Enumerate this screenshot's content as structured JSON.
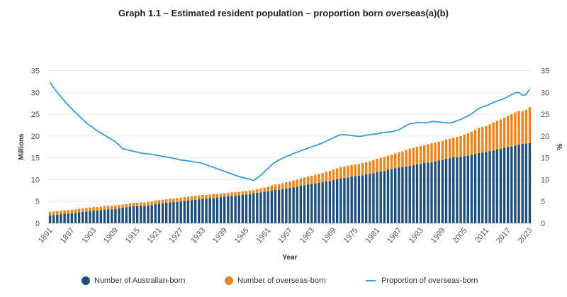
{
  "chart_data": {
    "type": "bar+line",
    "title": "Graph 1.1 – Estimated resident population – proportion born overseas(a)(b)",
    "xlabel": "Year",
    "ylabel": "Millions",
    "y2label": "%",
    "ylim": [
      0,
      35
    ],
    "y2lim": [
      0,
      35
    ],
    "yticks": [
      "0",
      "5",
      "10",
      "15",
      "20",
      "25",
      "30",
      "35"
    ],
    "y2ticks": [
      "0",
      "5",
      "10",
      "15",
      "20",
      "25",
      "30",
      "35"
    ],
    "x_start": 1891,
    "x_end": 2023,
    "xtick_labels": [
      "1891",
      "1897",
      "1903",
      "1909",
      "1915",
      "1921",
      "1927",
      "1933",
      "1939",
      "1945",
      "1951",
      "1957",
      "1963",
      "1969",
      "1975",
      "1981",
      "1987",
      "1993",
      "1999",
      "2005",
      "2011",
      "2017",
      "2023"
    ],
    "grid": true,
    "legend_position": "bottom",
    "colors": {
      "australian_born": "#1d4f79",
      "overseas_born": "#e8861c",
      "proportion": "#3b9ad8"
    },
    "series": [
      {
        "name": "Number of Australian-born",
        "type": "stacked-bar",
        "axis": "left",
        "values": [
          1.8,
          1.9,
          2.0,
          2.1,
          2.2,
          2.2,
          2.3,
          2.4,
          2.5,
          2.6,
          2.7,
          2.8,
          2.9,
          2.9,
          3.0,
          3.1,
          3.2,
          3.2,
          3.3,
          3.4,
          3.6,
          3.7,
          3.8,
          3.9,
          3.9,
          4.0,
          4.0,
          4.1,
          4.2,
          4.4,
          4.5,
          4.6,
          4.7,
          4.8,
          4.9,
          4.9,
          5.0,
          5.1,
          5.2,
          5.3,
          5.4,
          5.5,
          5.6,
          5.6,
          5.7,
          5.8,
          5.9,
          6.0,
          6.1,
          6.2,
          6.3,
          6.3,
          6.4,
          6.5,
          6.6,
          6.7,
          6.9,
          7.0,
          7.1,
          7.2,
          7.3,
          7.5,
          7.7,
          7.7,
          7.8,
          8.0,
          8.1,
          8.2,
          8.4,
          8.6,
          8.7,
          8.9,
          9.0,
          9.1,
          9.3,
          9.4,
          9.6,
          9.7,
          9.9,
          10.1,
          10.3,
          10.4,
          10.5,
          10.7,
          10.8,
          10.9,
          11.0,
          11.2,
          11.3,
          11.5,
          11.8,
          11.9,
          12.0,
          12.3,
          12.4,
          12.6,
          12.8,
          12.9,
          13.0,
          13.2,
          13.3,
          13.5,
          13.6,
          13.8,
          13.9,
          14.0,
          14.2,
          14.4,
          14.5,
          14.8,
          14.9,
          15.1,
          15.1,
          15.2,
          15.4,
          15.5,
          15.7,
          15.9,
          16.1,
          16.2,
          16.3,
          16.5,
          16.7,
          16.9,
          17.1,
          17.3,
          17.5,
          17.6,
          17.8,
          18.0,
          18.2,
          18.3,
          18.4
        ]
      },
      {
        "name": "Number of overseas-born",
        "type": "stacked-bar",
        "axis": "left",
        "values": [
          0.8,
          0.8,
          0.8,
          0.8,
          0.8,
          0.8,
          0.8,
          0.8,
          0.8,
          0.8,
          0.8,
          0.8,
          0.8,
          0.8,
          0.8,
          0.8,
          0.8,
          0.8,
          0.8,
          0.8,
          0.7,
          0.7,
          0.8,
          0.8,
          0.8,
          0.8,
          0.8,
          0.8,
          0.8,
          0.8,
          0.8,
          0.8,
          0.8,
          0.8,
          0.8,
          0.9,
          0.9,
          0.9,
          0.9,
          0.9,
          0.9,
          0.9,
          0.9,
          0.9,
          0.9,
          0.9,
          0.8,
          0.8,
          0.8,
          0.8,
          0.8,
          0.8,
          0.8,
          0.8,
          0.8,
          0.8,
          0.7,
          0.8,
          0.9,
          1.0,
          1.1,
          1.2,
          1.2,
          1.3,
          1.4,
          1.4,
          1.5,
          1.6,
          1.6,
          1.7,
          1.8,
          1.8,
          1.9,
          2.0,
          2.0,
          2.1,
          2.2,
          2.3,
          2.4,
          2.5,
          2.6,
          2.6,
          2.7,
          2.7,
          2.7,
          2.7,
          2.8,
          2.8,
          2.9,
          3.0,
          3.0,
          3.1,
          3.2,
          3.2,
          3.3,
          3.4,
          3.5,
          3.6,
          3.8,
          3.9,
          4.0,
          4.0,
          4.1,
          4.1,
          4.2,
          4.3,
          4.3,
          4.3,
          4.4,
          4.4,
          4.5,
          4.5,
          4.7,
          4.8,
          4.9,
          5.1,
          5.3,
          5.5,
          5.7,
          5.9,
          6.0,
          6.2,
          6.4,
          6.6,
          6.7,
          6.9,
          7.1,
          7.4,
          7.6,
          7.7,
          7.5,
          7.7,
          8.2
        ]
      },
      {
        "name": "Proportion of overseas-born",
        "type": "line",
        "axis": "right",
        "values": [
          32.3,
          31.1,
          30.0,
          29.0,
          28.0,
          27.1,
          26.2,
          25.4,
          24.6,
          23.8,
          23.0,
          22.4,
          21.8,
          21.2,
          20.7,
          20.2,
          19.7,
          19.2,
          18.7,
          17.9,
          17.1,
          16.9,
          16.7,
          16.5,
          16.3,
          16.1,
          16.0,
          15.9,
          15.8,
          15.6,
          15.5,
          15.3,
          15.2,
          15.0,
          14.9,
          14.7,
          14.5,
          14.4,
          14.3,
          14.2,
          14.0,
          13.9,
          13.7,
          13.4,
          13.1,
          12.8,
          12.5,
          12.2,
          11.9,
          11.6,
          11.3,
          11.0,
          10.7,
          10.5,
          10.3,
          10.1,
          9.8,
          10.4,
          11.0,
          11.8,
          12.6,
          13.4,
          14.0,
          14.5,
          14.9,
          15.3,
          15.6,
          16.0,
          16.3,
          16.6,
          16.9,
          17.2,
          17.5,
          17.8,
          18.1,
          18.4,
          18.8,
          19.2,
          19.6,
          20.0,
          20.3,
          20.3,
          20.2,
          20.1,
          20.0,
          19.9,
          20.0,
          20.2,
          20.3,
          20.4,
          20.5,
          20.7,
          20.8,
          20.9,
          21.0,
          21.2,
          21.4,
          21.9,
          22.4,
          22.8,
          22.9,
          23.1,
          23.1,
          23.0,
          23.1,
          23.3,
          23.3,
          23.2,
          23.1,
          23.0,
          23.0,
          23.2,
          23.5,
          23.8,
          24.2,
          24.6,
          25.1,
          25.7,
          26.3,
          26.7,
          26.9,
          27.3,
          27.7,
          28.0,
          28.3,
          28.6,
          29.0,
          29.5,
          29.9,
          30.0,
          29.3,
          29.5,
          30.7
        ]
      }
    ]
  }
}
